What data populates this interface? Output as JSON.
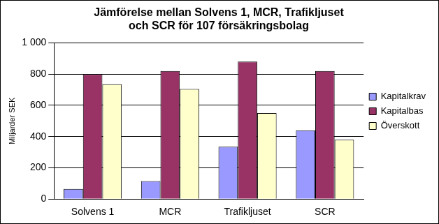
{
  "chart_data": {
    "type": "bar",
    "title": [
      "Jämförelse mellan Solvens 1, MCR, Trafikljuset",
      "och SCR för 107 försäkringsbolag"
    ],
    "y_label": "Miljarder SEK",
    "categories": [
      "Solvens 1",
      "MCR",
      "Trafikljuset",
      "SCR"
    ],
    "series": [
      {
        "name": "Kapitalkrav",
        "color": "#9999ff",
        "values": [
          65,
          115,
          335,
          440
        ]
      },
      {
        "name": "Kapitalbas",
        "color": "#993366",
        "values": [
          800,
          820,
          880,
          820
        ]
      },
      {
        "name": "Överskott",
        "color": "#ffffcc",
        "values": [
          735,
          705,
          550,
          380
        ]
      }
    ],
    "ylim": [
      0,
      1000
    ],
    "yticks": [
      0,
      200,
      400,
      600,
      800,
      {
        "value": 1000,
        "label": "1 000"
      }
    ],
    "grid": true,
    "legend": "right"
  }
}
